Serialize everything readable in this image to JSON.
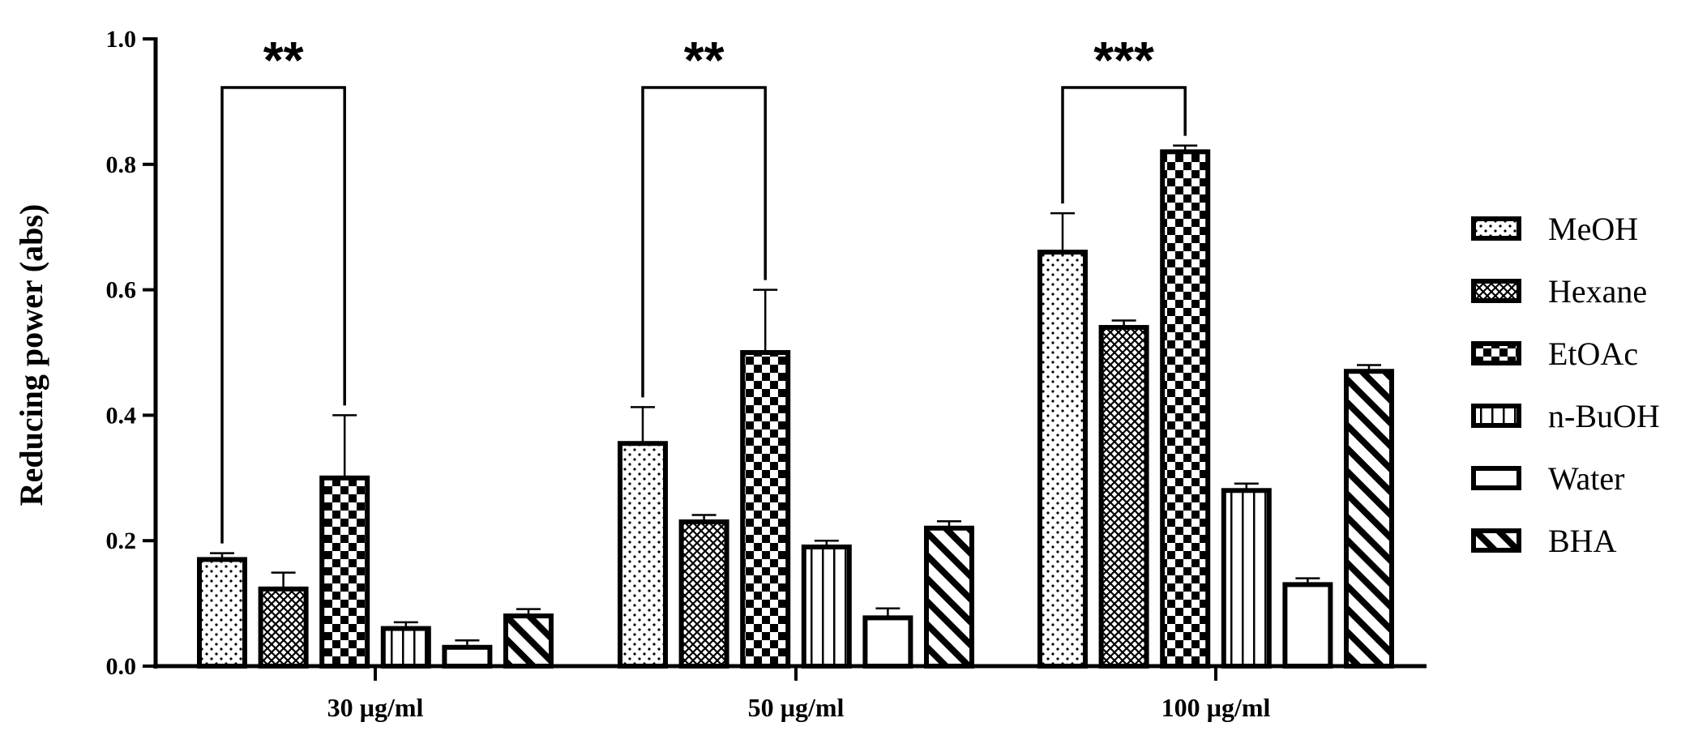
{
  "chart_data": {
    "type": "bar",
    "ylabel": "Reducing power (abs)",
    "xlabel": "",
    "ylim": [
      0,
      1.0
    ],
    "yticks": [
      "0.0",
      "0.2",
      "0.4",
      "0.6",
      "0.8",
      "1.0"
    ],
    "categories": [
      "30 µg/ml",
      "50 µg/ml",
      "100 µg/ml"
    ],
    "series": [
      {
        "name": "MeOH",
        "pattern": "dots",
        "values": [
          0.17,
          0.355,
          0.66
        ],
        "errors": [
          0.01,
          0.058,
          0.062
        ]
      },
      {
        "name": "Hexane",
        "pattern": "crosshatch",
        "values": [
          0.123,
          0.23,
          0.54
        ],
        "errors": [
          0.026,
          0.011,
          0.011
        ]
      },
      {
        "name": "EtOAc",
        "pattern": "checker",
        "values": [
          0.3,
          0.5,
          0.82
        ],
        "errors": [
          0.1,
          0.1,
          0.01
        ]
      },
      {
        "name": "n-BuOH",
        "pattern": "vertical-lines",
        "values": [
          0.06,
          0.19,
          0.28
        ],
        "errors": [
          0.01,
          0.01,
          0.011
        ]
      },
      {
        "name": "Water",
        "pattern": "empty",
        "values": [
          0.03,
          0.077,
          0.13
        ],
        "errors": [
          0.011,
          0.015,
          0.01
        ]
      },
      {
        "name": "BHA",
        "pattern": "diagonal-stripes",
        "values": [
          0.08,
          0.22,
          0.47
        ],
        "errors": [
          0.011,
          0.011,
          0.01
        ]
      }
    ],
    "significance": [
      {
        "category": "30 µg/ml",
        "from": "MeOH",
        "to": "EtOAc",
        "label": "**"
      },
      {
        "category": "50 µg/ml",
        "from": "MeOH",
        "to": "EtOAc",
        "label": "**"
      },
      {
        "category": "100 µg/ml",
        "from": "MeOH",
        "to": "EtOAc",
        "label": "***"
      }
    ],
    "legend_position": "right",
    "grid": false,
    "colors": {
      "bar_stroke": "#000000",
      "fill": "#ffffff",
      "pattern": "#000000"
    }
  }
}
